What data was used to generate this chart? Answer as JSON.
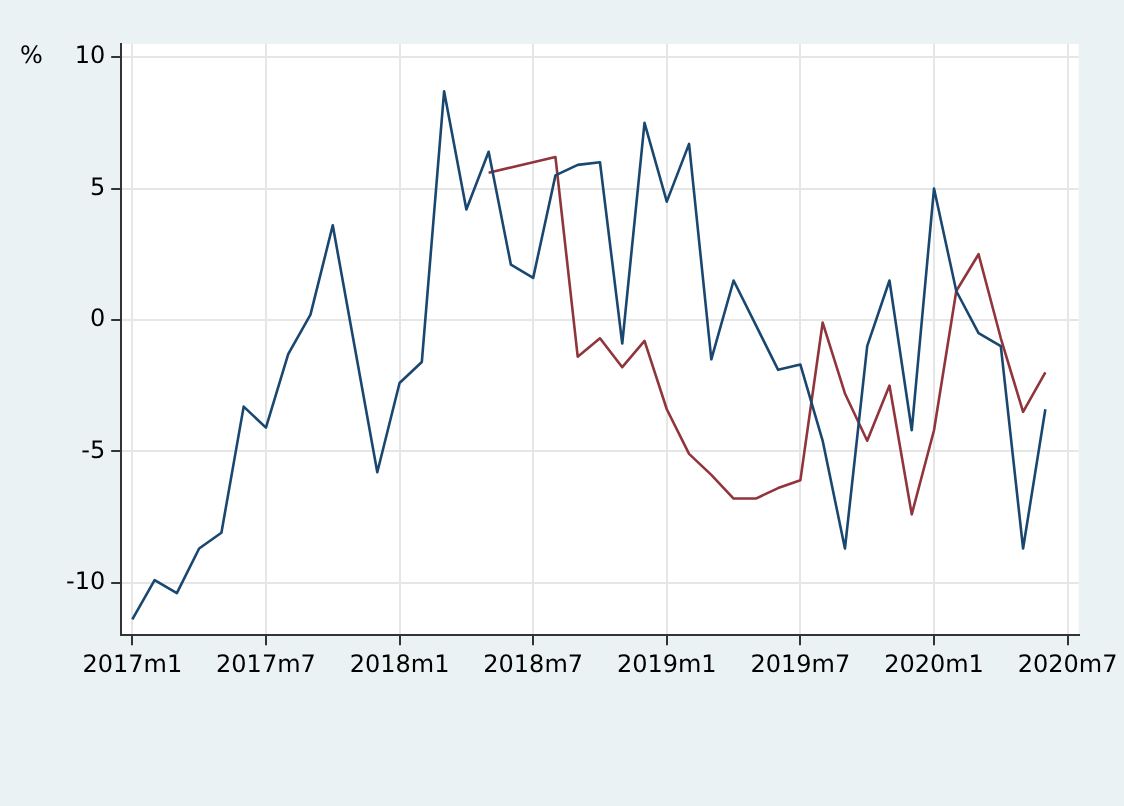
{
  "chart_data": {
    "type": "line",
    "ylabel": "%",
    "categories": [
      "2017m1",
      null,
      null,
      null,
      null,
      null,
      "2017m7",
      null,
      null,
      null,
      null,
      null,
      "2018m1",
      null,
      null,
      null,
      null,
      null,
      "2018m7",
      null,
      null,
      null,
      null,
      null,
      "2019m1",
      null,
      null,
      null,
      null,
      null,
      "2019m7",
      null,
      null,
      null,
      null,
      null,
      "2020m1",
      null,
      null,
      null,
      null,
      null,
      "2020m7"
    ],
    "series": [
      {
        "color": "#1a476f",
        "values": [
          -11.4,
          -9.9,
          -10.4,
          -8.7,
          -8.1,
          -3.3,
          -4.1,
          -1.3,
          0.2,
          3.6,
          -1.1,
          -5.8,
          -2.4,
          -1.6,
          8.7,
          4.2,
          6.4,
          2.1,
          1.6,
          5.5,
          5.9,
          6.0,
          -0.9,
          7.5,
          4.5,
          6.7,
          -1.5,
          1.5,
          -0.2,
          -1.9,
          -1.7,
          -4.6,
          -8.7,
          -1.0,
          1.5,
          -4.2,
          5.0,
          1.1,
          -0.5,
          -1.0,
          -8.7,
          -3.4,
          null
        ]
      },
      {
        "color": "#90353b",
        "values": [
          null,
          null,
          null,
          null,
          null,
          null,
          null,
          null,
          null,
          null,
          null,
          null,
          null,
          null,
          null,
          null,
          5.6,
          5.8,
          6.0,
          6.2,
          -1.4,
          -0.7,
          -1.8,
          -0.8,
          -3.4,
          -5.1,
          -5.9,
          -6.8,
          -6.8,
          -6.4,
          -6.1,
          -0.1,
          -2.8,
          -4.6,
          -2.5,
          -7.4,
          -4.2,
          1.1,
          2.5,
          -0.7,
          -3.5,
          -2.0,
          null
        ]
      }
    ],
    "ylim": [
      -12,
      10.5
    ],
    "yticks": [
      -10,
      -5,
      0,
      5,
      10
    ],
    "grid": true,
    "legend": false,
    "marker": "none",
    "line_style": "solid"
  }
}
